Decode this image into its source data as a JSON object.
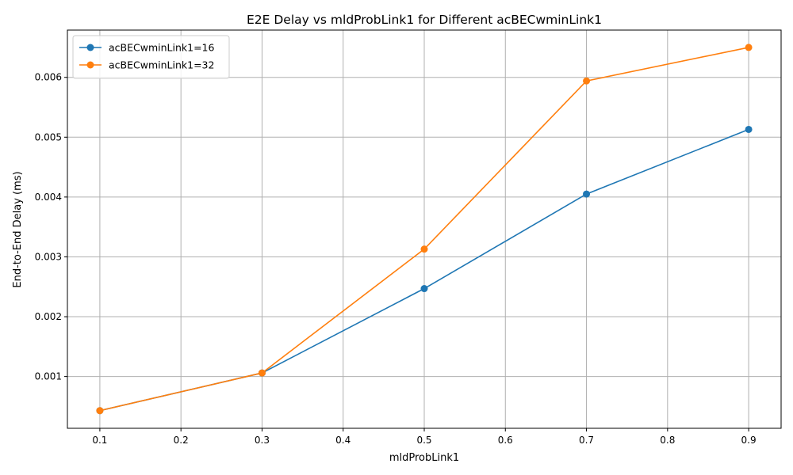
{
  "chart_data": {
    "type": "line",
    "title": "E2E Delay vs mldProbLink1 for Different acBECwminLink1",
    "xlabel": "mldProbLink1",
    "ylabel": "End-to-End Delay (ms)",
    "x": [
      0.1,
      0.3,
      0.5,
      0.7,
      0.9
    ],
    "xlim": [
      0.06,
      0.94
    ],
    "ylim": [
      0.000135,
      0.00679
    ],
    "x_ticks": [
      0.1,
      0.2,
      0.3,
      0.4,
      0.5,
      0.6,
      0.7,
      0.8,
      0.9
    ],
    "x_tick_labels": [
      "0.1",
      "0.2",
      "0.3",
      "0.4",
      "0.5",
      "0.6",
      "0.7",
      "0.8",
      "0.9"
    ],
    "y_ticks": [
      0.001,
      0.002,
      0.003,
      0.004,
      0.005,
      0.006
    ],
    "y_tick_labels": [
      "0.001",
      "0.002",
      "0.003",
      "0.004",
      "0.005",
      "0.006"
    ],
    "grid": true,
    "legend_position": "top-left",
    "series": [
      {
        "name": "acBECwminLink1=16",
        "color": "#1f77b4",
        "marker": "circle",
        "values": [
          0.00043,
          0.00106,
          0.00247,
          0.00405,
          0.00513
        ]
      },
      {
        "name": "acBECwminLink1=32",
        "color": "#ff7f0e",
        "marker": "circle",
        "values": [
          0.00043,
          0.00106,
          0.00313,
          0.00594,
          0.0065
        ]
      }
    ]
  }
}
